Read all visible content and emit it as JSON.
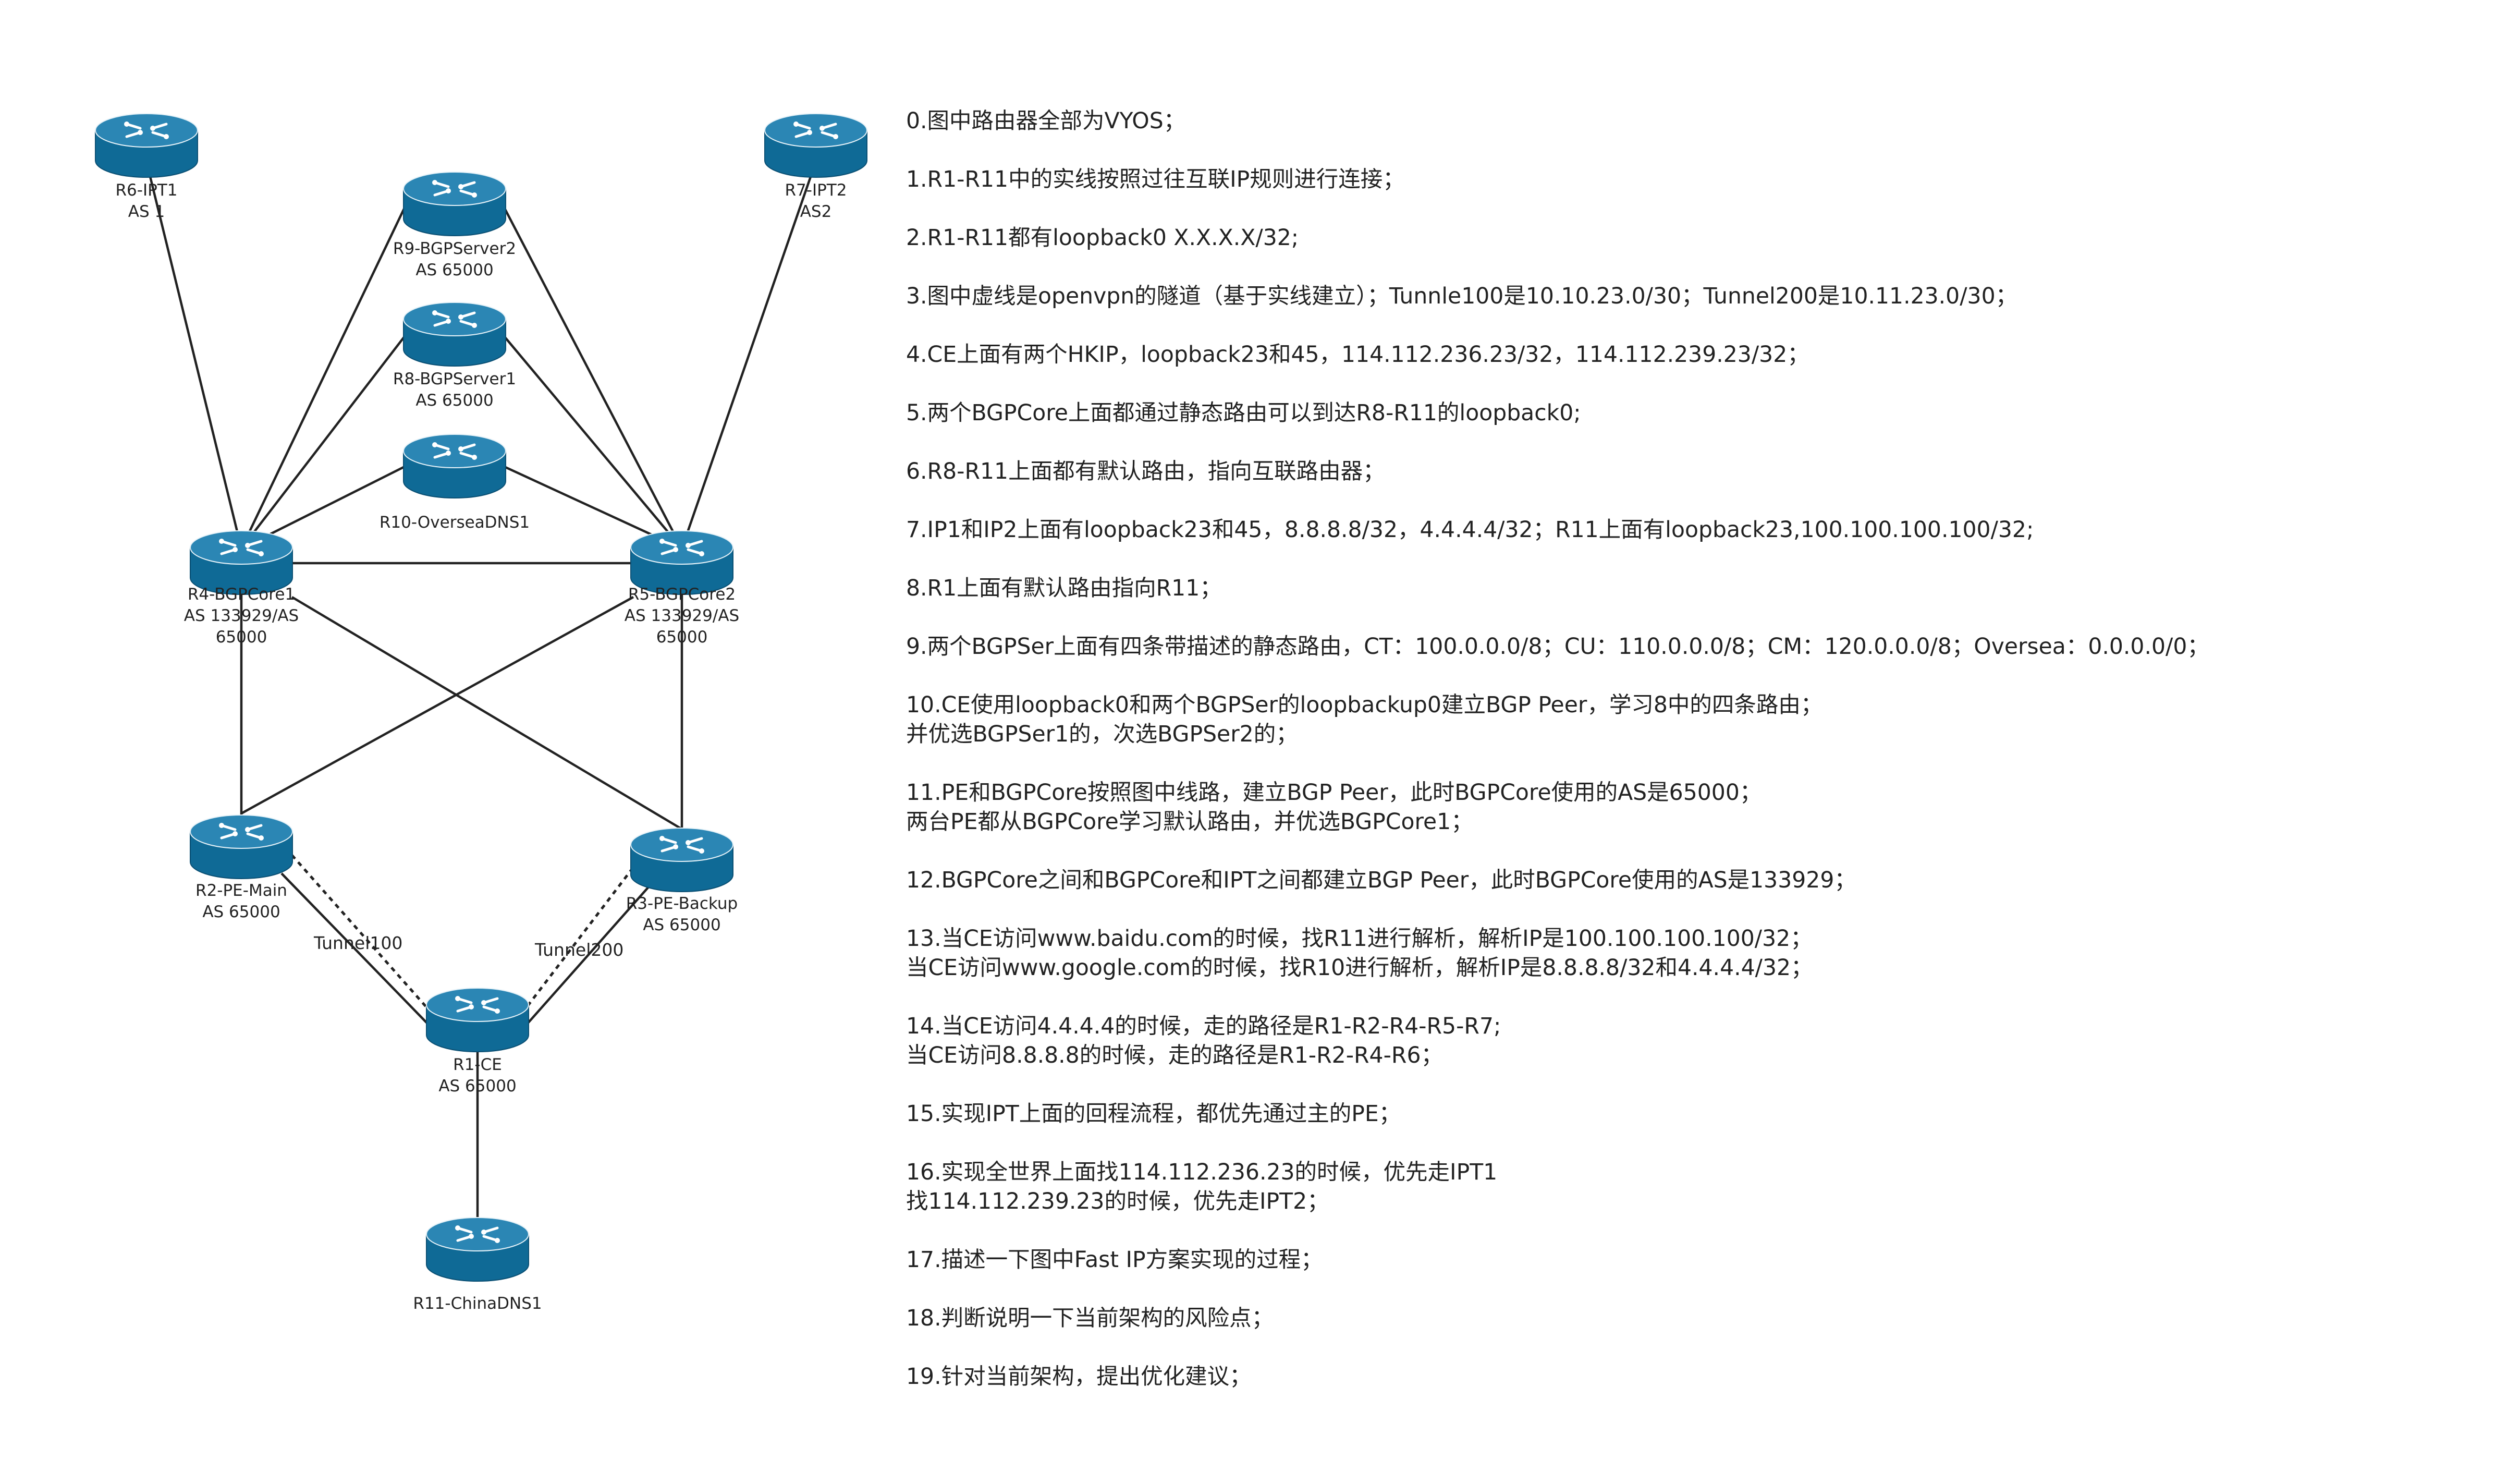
{
  "colors": {
    "router_body": "#0f6a96",
    "router_top": "#2b86b4",
    "router_edge": "#0a4f73",
    "link": "#222222"
  },
  "routers": [
    {
      "id": "r6",
      "icon": "router-icon",
      "label_lines": [
        "R6-IPT1",
        "AS 1"
      ]
    },
    {
      "id": "r7",
      "icon": "router-icon",
      "label_lines": [
        "R7-IPT2",
        "AS2"
      ]
    },
    {
      "id": "r9",
      "icon": "router-icon",
      "label_lines": [
        "R9-BGPServer2",
        "AS 65000"
      ]
    },
    {
      "id": "r8",
      "icon": "router-icon",
      "label_lines": [
        "R8-BGPServer1",
        "AS 65000"
      ]
    },
    {
      "id": "r10",
      "icon": "router-icon",
      "label_lines": [
        "R10-OverseaDNS1"
      ]
    },
    {
      "id": "r4",
      "icon": "router-icon",
      "label_lines": [
        "R4-BGPCore1",
        "AS 133929/AS",
        "65000"
      ]
    },
    {
      "id": "r5",
      "icon": "router-icon",
      "label_lines": [
        "R5-BGPCore2",
        "AS 133929/AS",
        "65000"
      ]
    },
    {
      "id": "r2",
      "icon": "router-icon",
      "label_lines": [
        "R2-PE-Main",
        "AS 65000"
      ]
    },
    {
      "id": "r3",
      "icon": "router-icon",
      "label_lines": [
        "R3-PE-Backup",
        "AS 65000"
      ]
    },
    {
      "id": "r1",
      "icon": "router-icon",
      "label_lines": [
        "R1-CE",
        "AS 65000"
      ]
    },
    {
      "id": "r11",
      "icon": "router-icon",
      "label_lines": [
        "R11-ChinaDNS1"
      ]
    }
  ],
  "links": [
    {
      "from": "r6",
      "to": "r4",
      "style": "solid"
    },
    {
      "from": "r7",
      "to": "r5",
      "style": "solid"
    },
    {
      "from": "r9",
      "to": "r4",
      "style": "solid"
    },
    {
      "from": "r9",
      "to": "r5",
      "style": "solid"
    },
    {
      "from": "r8",
      "to": "r4",
      "style": "solid"
    },
    {
      "from": "r8",
      "to": "r5",
      "style": "solid"
    },
    {
      "from": "r10",
      "to": "r4",
      "style": "solid"
    },
    {
      "from": "r10",
      "to": "r5",
      "style": "solid"
    },
    {
      "from": "r4",
      "to": "r5",
      "style": "solid"
    },
    {
      "from": "r4",
      "to": "r2",
      "style": "solid"
    },
    {
      "from": "r4",
      "to": "r3",
      "style": "solid"
    },
    {
      "from": "r5",
      "to": "r2",
      "style": "solid"
    },
    {
      "from": "r5",
      "to": "r3",
      "style": "solid"
    },
    {
      "from": "r2",
      "to": "r1",
      "style": "solid"
    },
    {
      "from": "r3",
      "to": "r1",
      "style": "solid"
    },
    {
      "from": "r1",
      "to": "r11",
      "style": "solid"
    },
    {
      "from": "r2",
      "to": "r1",
      "style": "dashed",
      "tunnel": "Tunnel100"
    },
    {
      "from": "r3",
      "to": "r1",
      "style": "dashed",
      "tunnel": "Tunnel200"
    }
  ],
  "tunnels": {
    "tunnel100": "Tunnel100",
    "tunnel200": "Tunnel200"
  },
  "notes": [
    [
      "0.图中路由器全部为VYOS；"
    ],
    [
      "1.R1-R11中的实线按照过往互联IP规则进行连接；"
    ],
    [
      "2.R1-R11都有loopback0 X.X.X.X/32;"
    ],
    [
      "3.图中虚线是openvpn的隧道（基于实线建立）；Tunnle100是10.10.23.0/30；Tunnel200是10.11.23.0/30；"
    ],
    [
      "4.CE上面有两个HKIP，loopback23和45，114.112.236.23/32，114.112.239.23/32；"
    ],
    [
      "5.两个BGPCore上面都通过静态路由可以到达R8-R11的loopback0;"
    ],
    [
      "6.R8-R11上面都有默认路由，指向互联路由器；"
    ],
    [
      "7.IP1和IP2上面有loopback23和45，8.8.8.8/32，4.4.4.4/32；R11上面有loopback23,100.100.100.100/32;"
    ],
    [
      "8.R1上面有默认路由指向R11；"
    ],
    [
      "9.两个BGPSer上面有四条带描述的静态路由，CT：100.0.0.0/8；CU：110.0.0.0/8；CM：120.0.0.0/8；Oversea：0.0.0.0/0；"
    ],
    [
      "10.CE使用loopback0和两个BGPSer的loopbackup0建立BGP Peer，学习8中的四条路由；",
      "并优选BGPSer1的，次选BGPSer2的；"
    ],
    [
      "11.PE和BGPCore按照图中线路，建立BGP Peer，此时BGPCore使用的AS是65000；",
      "两台PE都从BGPCore学习默认路由，并优选BGPCore1；"
    ],
    [
      "12.BGPCore之间和BGPCore和IPT之间都建立BGP Peer，此时BGPCore使用的AS是133929；"
    ],
    [
      "13.当CE访问www.baidu.com的时候，找R11进行解析，解析IP是100.100.100.100/32；",
      "当CE访问www.google.com的时候，找R10进行解析，解析IP是8.8.8.8/32和4.4.4.4/32；"
    ],
    [
      "14.当CE访问4.4.4.4的时候，走的路径是R1-R2-R4-R5-R7;",
      "当CE访问8.8.8.8的时候，走的路径是R1-R2-R4-R6；"
    ],
    [
      "15.实现IPT上面的回程流程，都优先通过主的PE；"
    ],
    [
      "16.实现全世界上面找114.112.236.23的时候，优先走IPT1",
      "找114.112.239.23的时候，优先走IPT2；"
    ],
    [
      "17.描述一下图中Fast IP方案实现的过程；"
    ],
    [
      "18.判断说明一下当前架构的风险点；"
    ],
    [
      "19.针对当前架构，提出优化建议；"
    ]
  ]
}
